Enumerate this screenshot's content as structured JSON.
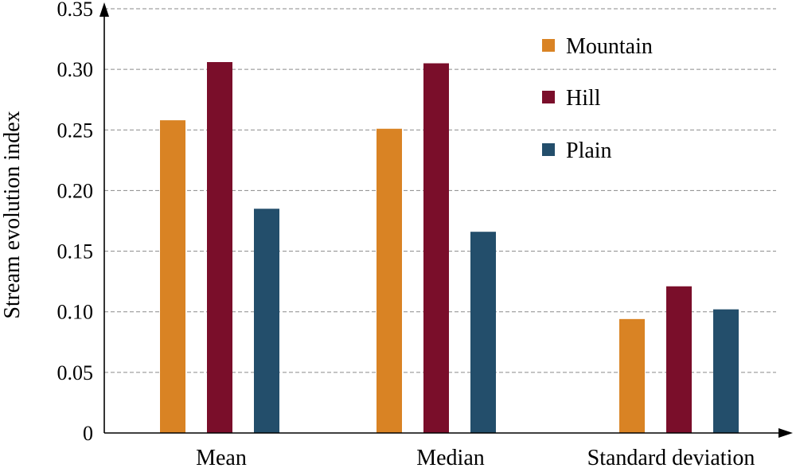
{
  "chart_data": {
    "type": "bar",
    "title": "",
    "xlabel": "",
    "ylabel": "Stream evolution index",
    "ylim": [
      0,
      0.35
    ],
    "yticks": [
      "0",
      "0.05",
      "0.10",
      "0.15",
      "0.20",
      "0.25",
      "0.30",
      "0.35"
    ],
    "yticks_values": [
      0,
      0.05,
      0.1,
      0.15,
      0.2,
      0.25,
      0.3,
      0.35
    ],
    "grid": true,
    "legend_position": "top-right",
    "categories": [
      "Mean",
      "Median",
      "Standard deviation"
    ],
    "series": [
      {
        "name": "Mountain",
        "color": "#D98324",
        "values": [
          0.258,
          0.251,
          0.094
        ]
      },
      {
        "name": "Hill",
        "color": "#7A0E2A",
        "values": [
          0.306,
          0.305,
          0.121
        ]
      },
      {
        "name": "Plain",
        "color": "#234E6B",
        "values": [
          0.185,
          0.166,
          0.102
        ]
      }
    ]
  }
}
